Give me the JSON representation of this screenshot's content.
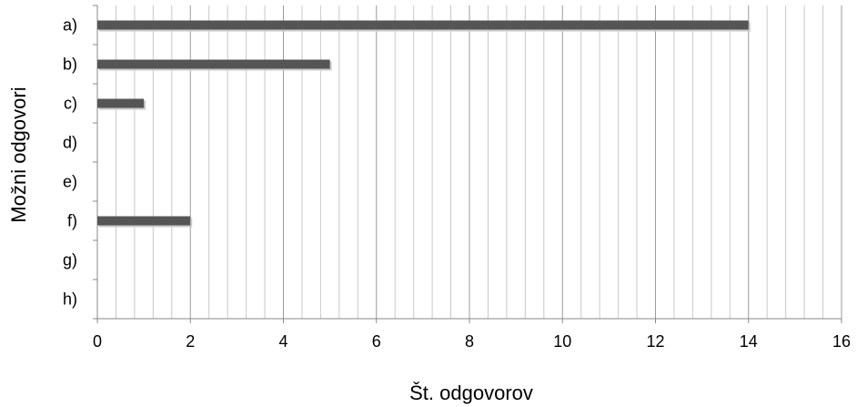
{
  "chart_data": {
    "type": "bar",
    "orientation": "horizontal",
    "categories": [
      "a)",
      "b)",
      "c)",
      "d)",
      "e)",
      "f)",
      "g)",
      "h)"
    ],
    "values": [
      14,
      5,
      1,
      0,
      0,
      2,
      0,
      0
    ],
    "xlabel": "Št. odgovorov",
    "ylabel": "Možni odgovori",
    "xlim": [
      0,
      16
    ],
    "x_ticks": [
      "0",
      "2",
      "4",
      "6",
      "8",
      "10",
      "12",
      "14",
      "16"
    ],
    "major_step": 2,
    "minor_step": 0.4,
    "grid": true,
    "legend": "none",
    "bar_color": "#555555",
    "grid_major_color": "#9a9a9a",
    "grid_minor_color": "#c8c8c8"
  }
}
